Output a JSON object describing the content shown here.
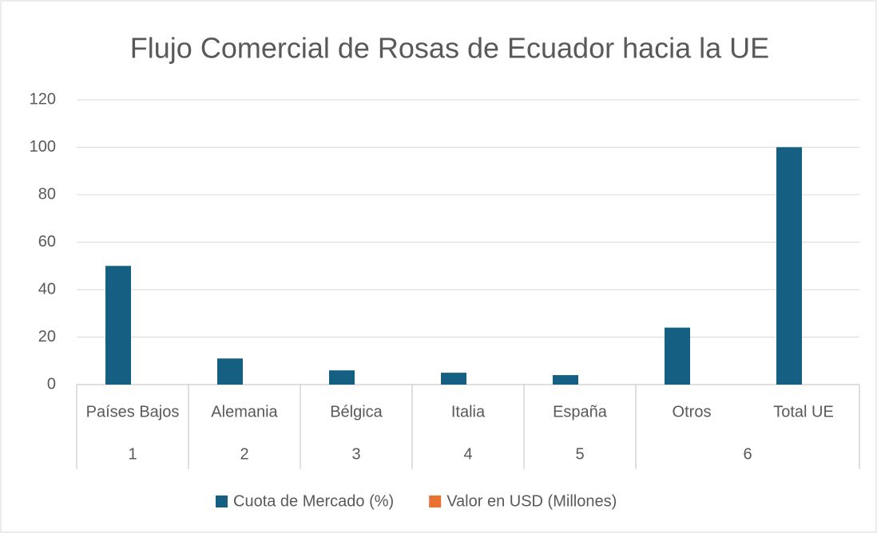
{
  "chart_data": {
    "type": "bar",
    "title": "Flujo Comercial de Rosas de Ecuador hacia la UE",
    "groups": [
      {
        "label": "1",
        "categories": [
          "Países Bajos"
        ]
      },
      {
        "label": "2",
        "categories": [
          "Alemania"
        ]
      },
      {
        "label": "3",
        "categories": [
          "Bélgica"
        ]
      },
      {
        "label": "4",
        "categories": [
          "Italia"
        ]
      },
      {
        "label": "5",
        "categories": [
          "España"
        ]
      },
      {
        "label": "6",
        "categories": [
          "Otros",
          "Total UE"
        ]
      }
    ],
    "series": [
      {
        "name": "Cuota de Mercado (%)",
        "color": "#156082",
        "values": [
          50,
          11,
          6,
          5,
          4,
          24,
          100
        ]
      },
      {
        "name": "Valor en USD (Millones)",
        "color": "#e97132",
        "values": [
          null,
          null,
          null,
          null,
          null,
          null,
          null
        ]
      }
    ],
    "ylim": [
      0,
      120
    ],
    "yticks": [
      0,
      20,
      40,
      60,
      80,
      100,
      120
    ],
    "grid": true,
    "legend": "bottom"
  }
}
